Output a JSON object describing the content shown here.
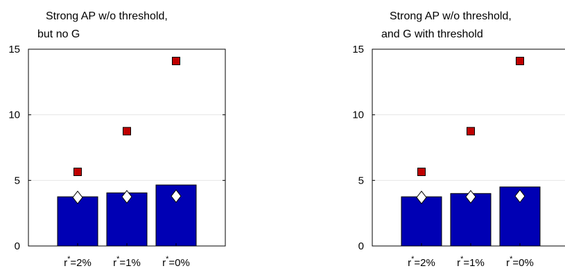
{
  "chart_data": [
    {
      "type": "bar",
      "title_line1": "Strong AP w/o threshold,",
      "title_line2": "but no G",
      "categories": [
        {
          "base": "r",
          "sup": "*",
          "rest": "=2%"
        },
        {
          "base": "r",
          "sup": "*",
          "rest": "=1%"
        },
        {
          "base": "r",
          "sup": "*",
          "rest": "=0%"
        }
      ],
      "ylim": [
        0,
        15
      ],
      "yticks": [
        0,
        5,
        10,
        15
      ],
      "grid": true,
      "bars": {
        "values": [
          3.75,
          4.05,
          4.65
        ],
        "color": "#0000b4"
      },
      "squares": {
        "values": [
          5.65,
          8.75,
          14.1
        ],
        "color": "#c00000"
      },
      "diamonds": {
        "values": [
          3.7,
          3.75,
          3.8
        ],
        "color": "#ffffff"
      }
    },
    {
      "type": "bar",
      "title_line1": "Strong AP w/o threshold,",
      "title_line2": "and G with threshold",
      "categories": [
        {
          "base": "r",
          "sup": "*",
          "rest": "=2%"
        },
        {
          "base": "r",
          "sup": "*",
          "rest": "=1%"
        },
        {
          "base": "r",
          "sup": "*",
          "rest": "=0%"
        }
      ],
      "ylim": [
        0,
        15
      ],
      "yticks": [
        0,
        5,
        10,
        15
      ],
      "grid": true,
      "bars": {
        "values": [
          3.75,
          4.0,
          4.5
        ],
        "color": "#0000b4"
      },
      "squares": {
        "values": [
          5.65,
          8.75,
          14.1
        ],
        "color": "#c00000"
      },
      "diamonds": {
        "values": [
          3.7,
          3.75,
          3.8
        ],
        "color": "#ffffff"
      }
    }
  ]
}
